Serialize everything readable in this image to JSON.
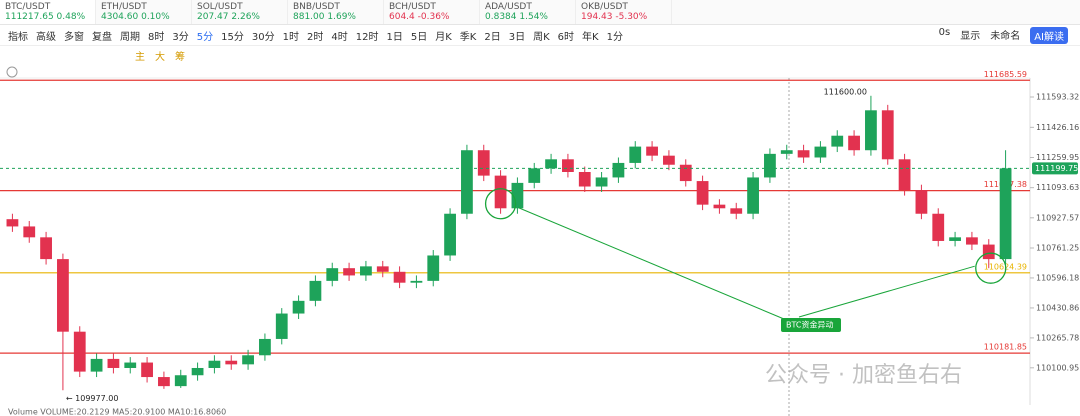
{
  "tabs": [
    {
      "symbol": "BTC/USDT",
      "price": "111217.65",
      "change": "0.48%"
    },
    {
      "symbol": "ETH/USDT",
      "price": "4304.60",
      "change": "0.10%"
    },
    {
      "symbol": "SOL/USDT",
      "price": "207.47",
      "change": "2.26%"
    },
    {
      "symbol": "BNB/USDT",
      "price": "881.00",
      "change": "1.69%"
    },
    {
      "symbol": "BCH/USDT",
      "price": "604.4",
      "change": "-0.36%"
    },
    {
      "symbol": "ADA/USDT",
      "price": "0.8384",
      "change": "1.54%"
    },
    {
      "symbol": "OKB/USDT",
      "price": "194.43",
      "change": "-5.30%"
    }
  ],
  "toolbar": {
    "tools": [
      "指标",
      "高级",
      "多窗",
      "复盘",
      "周期"
    ],
    "periods": [
      "8时",
      "3分",
      "5分",
      "15分",
      "30分",
      "1时",
      "2时",
      "4时",
      "12时",
      "1日",
      "5日",
      "月K",
      "季K",
      "2日",
      "3日",
      "周K",
      "6时",
      "年K",
      "1分"
    ],
    "active_period": "5分",
    "right": [
      "0s",
      "显示",
      "未命名",
      "AI解读"
    ],
    "modes": [
      "主",
      "大",
      "筹"
    ]
  },
  "chart_data": {
    "type": "candlestick",
    "open": [
      110920,
      110880,
      110820,
      110700,
      110300,
      110080,
      110150,
      110100,
      110130,
      110050,
      110000,
      110060,
      110100,
      110140,
      110120,
      110170,
      110260,
      110400,
      110470,
      110580,
      110650,
      110610,
      110660,
      110630,
      110570,
      110580,
      110720,
      110950,
      111300,
      111160,
      110980,
      111120,
      111200,
      111250,
      111180,
      111100,
      111150,
      111230,
      111320,
      111270,
      111220,
      111130,
      111000,
      110980,
      110950,
      111150,
      111280,
      111300,
      111260,
      111320,
      111380,
      111300,
      111520,
      111250,
      111080,
      110950,
      110800,
      110820,
      110780,
      110700
    ],
    "high": [
      110950,
      110910,
      110850,
      110730,
      110330,
      110180,
      110180,
      110160,
      110160,
      110080,
      110090,
      110130,
      110170,
      110170,
      110200,
      110290,
      110430,
      110500,
      110610,
      110680,
      110680,
      110690,
      110690,
      110660,
      110610,
      110750,
      110980,
      111330,
      111330,
      111190,
      111150,
      111230,
      111280,
      111280,
      111210,
      111180,
      111260,
      111350,
      111350,
      111300,
      111250,
      111160,
      111030,
      111010,
      111180,
      111310,
      111330,
      111330,
      111350,
      111410,
      111410,
      111600,
      111550,
      111280,
      111110,
      110980,
      110850,
      110850,
      110810,
      111300
    ],
    "low": [
      110850,
      110790,
      110670,
      109977,
      110050,
      110050,
      110070,
      110070,
      110020,
      109985,
      109990,
      110030,
      110070,
      110090,
      110090,
      110140,
      110230,
      110370,
      110440,
      110550,
      110580,
      110580,
      110600,
      110540,
      110540,
      110550,
      110690,
      110920,
      111130,
      110950,
      110950,
      111090,
      111170,
      111150,
      111070,
      111070,
      111120,
      111200,
      111240,
      111190,
      111100,
      110970,
      110950,
      110920,
      110920,
      111120,
      111250,
      111230,
      111230,
      111290,
      111270,
      111270,
      111220,
      111050,
      110920,
      110770,
      110770,
      110750,
      110650,
      110670
    ],
    "close": [
      110880,
      110820,
      110700,
      110300,
      110080,
      110150,
      110100,
      110130,
      110050,
      110000,
      110060,
      110100,
      110140,
      110120,
      110170,
      110260,
      110400,
      110470,
      110580,
      110650,
      110610,
      110660,
      110630,
      110570,
      110580,
      110720,
      110950,
      111300,
      111160,
      110980,
      111120,
      111200,
      111250,
      111180,
      111100,
      111150,
      111230,
      111320,
      111270,
      111220,
      111130,
      111000,
      110980,
      110950,
      111150,
      111280,
      111300,
      111260,
      111320,
      111380,
      111300,
      111520,
      111250,
      111080,
      110950,
      110800,
      110820,
      110780,
      110700,
      111200
    ],
    "up_color": "#1ea35a",
    "down_color": "#e2324f",
    "ylim": [
      109896,
      111698
    ],
    "yticks": [
      111593.32,
      111426.16,
      111259.95,
      111093.63,
      110927.57,
      110761.25,
      110596.18,
      110430.86,
      110265.78,
      110100.95
    ],
    "levels": [
      {
        "value": 111685.59,
        "color": "#e53935"
      },
      {
        "value": 111077.38,
        "color": "#e53935"
      },
      {
        "value": 110624.39,
        "color": "#e8b400"
      },
      {
        "value": 110181.85,
        "color": "#e53935"
      }
    ],
    "last_price": 111199.75,
    "high_label": {
      "value": 111600,
      "label": "111600.00"
    },
    "low_label": {
      "value": 109977,
      "label": "← 109977.00"
    },
    "annotation": "BTC资金异动",
    "volume_text": "Volume  VOLUME:20.2129  MA5:20.9100  MA10:16.8060",
    "watermark": "公众号 · 加密鱼右右"
  }
}
